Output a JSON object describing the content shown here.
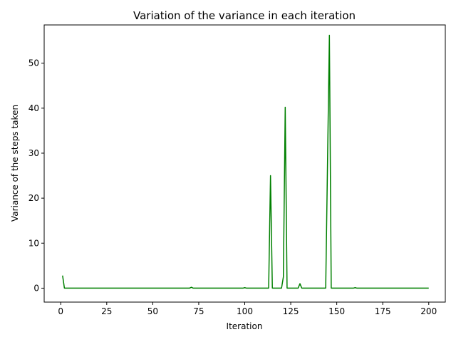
{
  "chart_data": {
    "type": "line",
    "title": "Variation of the variance in each iteration",
    "xlabel": "Iteration",
    "ylabel": "Variance of the steps taken",
    "xlim": [
      -9,
      209
    ],
    "ylim": [
      -3.1,
      58.5
    ],
    "xticks": [
      0,
      25,
      50,
      75,
      100,
      125,
      150,
      175,
      200
    ],
    "yticks": [
      0,
      10,
      20,
      30,
      40,
      50
    ],
    "grid": false,
    "legend": "none",
    "series": [
      {
        "color": "#008000",
        "points": [
          [
            1,
            2.8
          ],
          [
            2,
            0
          ],
          [
            70,
            0
          ],
          [
            71,
            0.2
          ],
          [
            72,
            0
          ],
          [
            99,
            0
          ],
          [
            100,
            0.1
          ],
          [
            101,
            0
          ],
          [
            113,
            0
          ],
          [
            114,
            25
          ],
          [
            115,
            0
          ],
          [
            120,
            0
          ],
          [
            121,
            2.5
          ],
          [
            122,
            40.2
          ],
          [
            123,
            0
          ],
          [
            129,
            0
          ],
          [
            130,
            1.0
          ],
          [
            131,
            0
          ],
          [
            144,
            0
          ],
          [
            146,
            56.2
          ],
          [
            147,
            0
          ],
          [
            159,
            0
          ],
          [
            160,
            0.1
          ],
          [
            161,
            0
          ],
          [
            200,
            0
          ]
        ]
      }
    ]
  }
}
